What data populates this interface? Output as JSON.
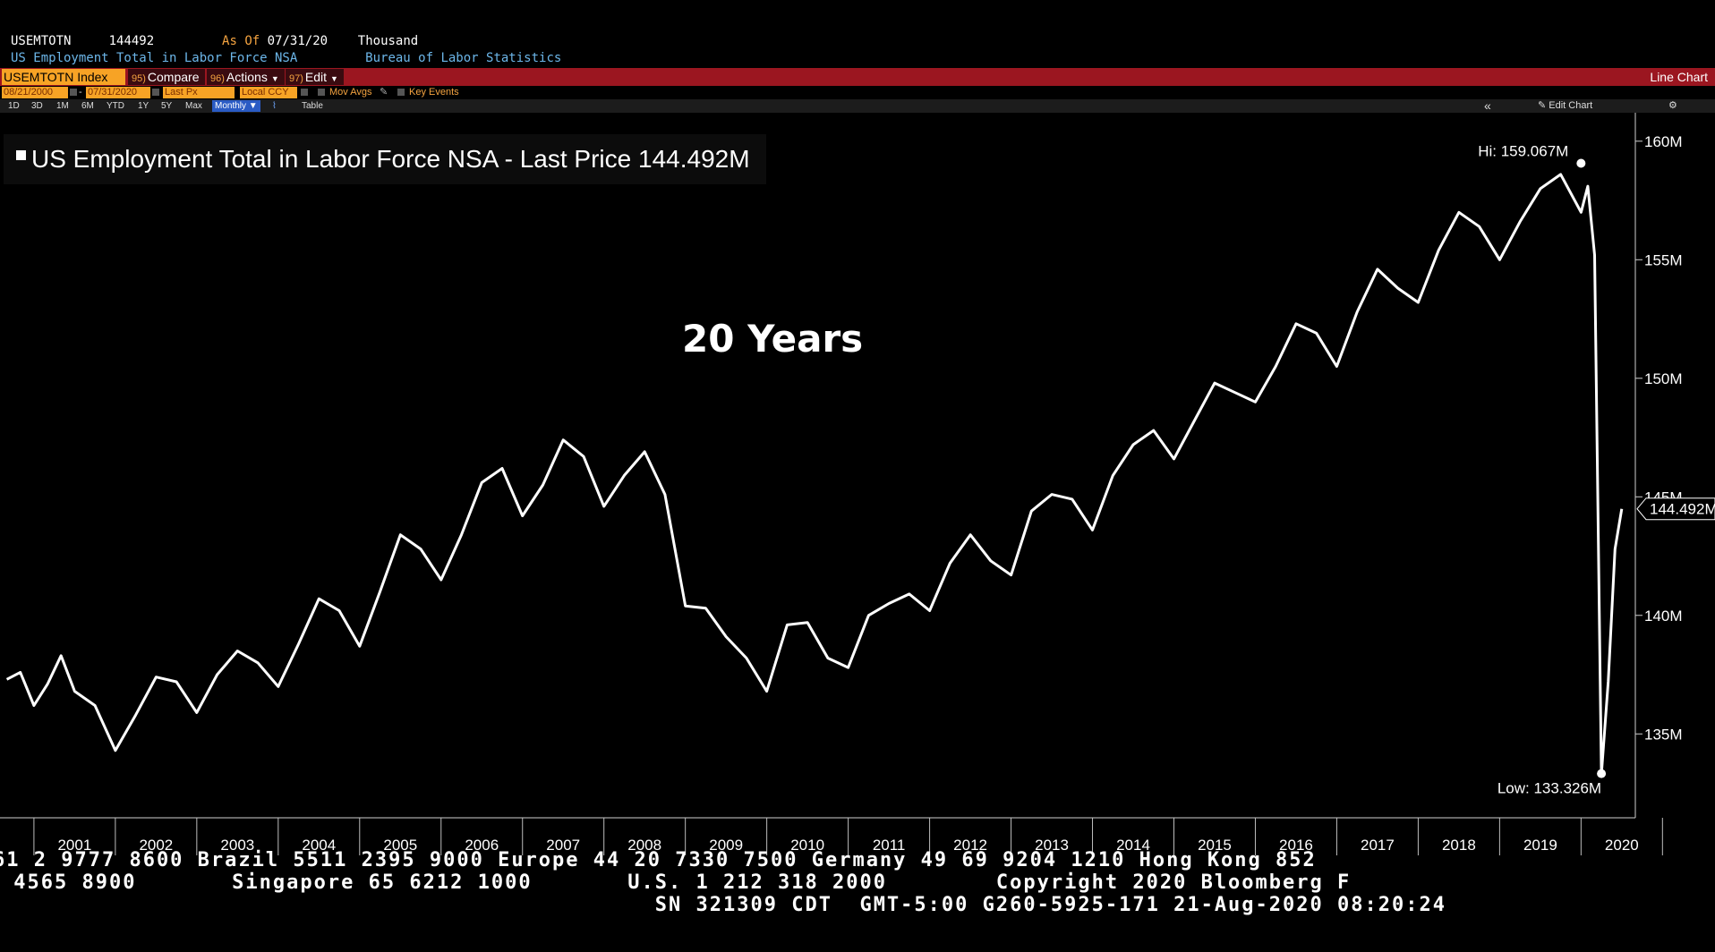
{
  "header": {
    "ticker": "USEMTOTN",
    "value": "144492",
    "as_of_label": "As Of",
    "as_of_date": "07/31/20",
    "units": "Thousand",
    "description": "US Employment Total in Labor Force NSA",
    "source": "Bureau of Labor Statistics"
  },
  "command_bar": {
    "security": "USEMTOTN Index",
    "compare_num": "95)",
    "compare_label": "Compare",
    "actions_num": "96)",
    "actions_label": "Actions",
    "edit_num": "97)",
    "edit_label": "Edit",
    "chart_type": "Line Chart"
  },
  "date_row": {
    "start_date": "08/21/2000",
    "end_date": "07/31/2020",
    "field": "Last Px",
    "currency": "Local CCY",
    "mov_avgs": "Mov Avgs",
    "key_events": "Key Events"
  },
  "period_row": {
    "periods": [
      "1D",
      "3D",
      "1M",
      "6M",
      "YTD",
      "1Y",
      "5Y",
      "Max"
    ],
    "frequency": "Monthly",
    "table": "Table",
    "collapse": "«",
    "edit_chart": "Edit Chart",
    "settings_icon": "gear-icon"
  },
  "legend": {
    "text": "US Employment Total in Labor Force NSA - Last Price",
    "last_value": "144.492M"
  },
  "annotation": "20 Years",
  "chart_data": {
    "type": "line",
    "title": "",
    "xlabel": "",
    "ylabel": "",
    "x_tick_labels": [
      "2001",
      "2002",
      "2003",
      "2004",
      "2005",
      "2006",
      "2007",
      "2008",
      "2009",
      "2010",
      "2011",
      "2012",
      "2013",
      "2014",
      "2015",
      "2016",
      "2017",
      "2018",
      "2019",
      "2020"
    ],
    "y_tick_labels": [
      "135M",
      "140M",
      "145M",
      "150M",
      "155M",
      "160M"
    ],
    "y_ticks": [
      135,
      140,
      145,
      150,
      155,
      160
    ],
    "ylim": [
      131.5,
      161.2
    ],
    "xlim": [
      "2000-08",
      "2020-09"
    ],
    "units": "millions",
    "grid": false,
    "line_color": "#ffffff",
    "series": [
      {
        "values_dates": [
          "2000-09",
          "2000-11",
          "2001-01",
          "2001-03",
          "2001-05",
          "2001-07",
          "2001-10",
          "2002-01",
          "2002-04",
          "2002-07",
          "2002-10",
          "2003-01",
          "2003-04",
          "2003-07",
          "2003-10",
          "2004-01",
          "2004-04",
          "2004-07",
          "2004-10",
          "2005-01",
          "2005-04",
          "2005-07",
          "2005-10",
          "2006-01",
          "2006-04",
          "2006-07",
          "2006-10",
          "2007-01",
          "2007-04",
          "2007-07",
          "2007-10",
          "2008-01",
          "2008-04",
          "2008-07",
          "2008-10",
          "2009-01",
          "2009-04",
          "2009-07",
          "2009-10",
          "2010-01",
          "2010-04",
          "2010-07",
          "2010-10",
          "2011-01",
          "2011-04",
          "2011-07",
          "2011-10",
          "2012-01",
          "2012-04",
          "2012-07",
          "2012-10",
          "2013-01",
          "2013-04",
          "2013-07",
          "2013-10",
          "2014-01",
          "2014-04",
          "2014-07",
          "2014-10",
          "2015-01",
          "2015-04",
          "2015-07",
          "2015-10",
          "2016-01",
          "2016-04",
          "2016-07",
          "2016-10",
          "2017-01",
          "2017-04",
          "2017-07",
          "2017-10",
          "2018-01",
          "2018-04",
          "2018-07",
          "2018-10",
          "2019-01",
          "2019-04",
          "2019-07",
          "2019-10",
          "2020-01",
          "2020-02",
          "2020-03",
          "2020-04",
          "2020-05",
          "2020-06",
          "2020-07"
        ],
        "values": [
          137.3,
          137.6,
          136.2,
          137.1,
          138.3,
          136.8,
          136.2,
          134.3,
          135.8,
          137.4,
          137.2,
          135.9,
          137.5,
          138.5,
          138.0,
          137.0,
          138.8,
          140.7,
          140.2,
          138.7,
          141.0,
          143.4,
          142.8,
          141.5,
          143.4,
          145.6,
          146.2,
          144.2,
          145.5,
          147.4,
          146.7,
          144.6,
          145.9,
          146.9,
          145.1,
          140.4,
          140.3,
          139.1,
          138.2,
          136.8,
          139.6,
          139.7,
          138.2,
          137.8,
          140.0,
          140.5,
          140.9,
          140.2,
          142.2,
          143.4,
          142.3,
          141.7,
          144.4,
          145.1,
          144.9,
          143.6,
          145.9,
          147.2,
          147.8,
          146.6,
          148.2,
          149.8,
          149.4,
          149.0,
          150.5,
          152.3,
          151.9,
          150.5,
          152.8,
          154.6,
          153.8,
          153.2,
          155.4,
          157.0,
          156.4,
          155.0,
          156.6,
          158.0,
          158.6,
          157.0,
          158.1,
          155.2,
          133.3,
          137.2,
          142.8,
          144.492
        ]
      }
    ],
    "high": {
      "label": "Hi:",
      "value": 159.067,
      "display": "159.067M",
      "date": "2020-01"
    },
    "low": {
      "label": "Low:",
      "value": 133.326,
      "display": "133.326M",
      "date": "2020-04"
    },
    "last": {
      "display": "144.492M",
      "value": 144.492
    }
  },
  "footer": {
    "line1": "61 2 9777 8600 Brazil 5511 2395 9000 Europe 44 20 7330 7500 Germany 49 69 9204 1210 Hong Kong 852",
    "line2": " 4565 8900       Singapore 65 6212 1000       U.S. 1 212 318 2000        Copyright 2020 Bloomberg F",
    "line3": "                                                SN 321309 CDT  GMT-5:00 G260-5925-171 21-Aug-2020 08:20:24"
  }
}
